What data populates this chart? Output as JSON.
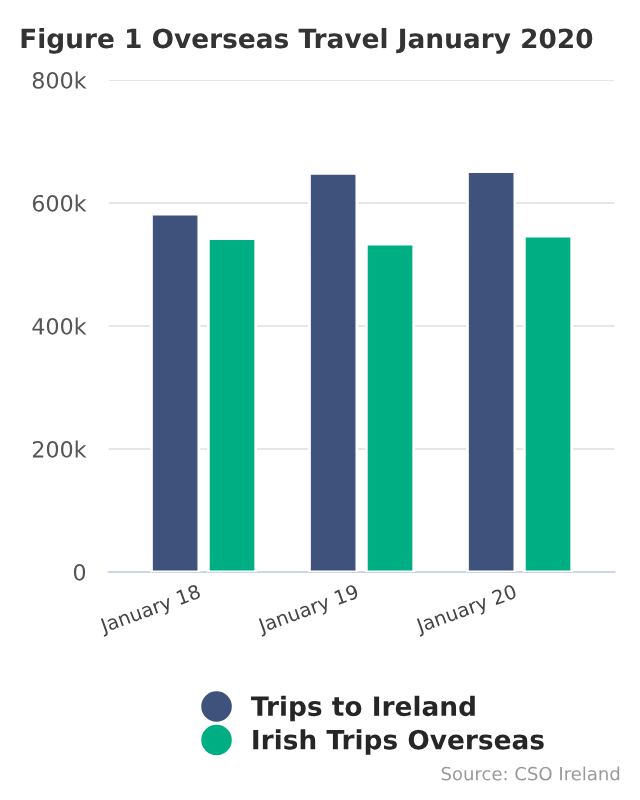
{
  "chart_data": {
    "type": "bar",
    "title": "Figure 1 Overseas Travel January 2020",
    "categories": [
      "January 18",
      "January 19",
      "January 20"
    ],
    "series": [
      {
        "name": "Trips to Ireland",
        "color": "#3f527c",
        "values": [
          582000,
          648000,
          651000
        ]
      },
      {
        "name": "Irish Trips Overseas",
        "color": "#00ae84",
        "values": [
          542000,
          533000,
          546000
        ]
      }
    ],
    "ylim": [
      0,
      800000
    ],
    "yticks": [
      {
        "value": 0,
        "label": "0"
      },
      {
        "value": 200000,
        "label": "200k"
      },
      {
        "value": 400000,
        "label": "400k"
      },
      {
        "value": 600000,
        "label": "600k"
      },
      {
        "value": 800000,
        "label": "800k"
      }
    ],
    "grid": "y",
    "legend": "bottom",
    "annotations": [
      "Source: CSO Ireland"
    ]
  }
}
